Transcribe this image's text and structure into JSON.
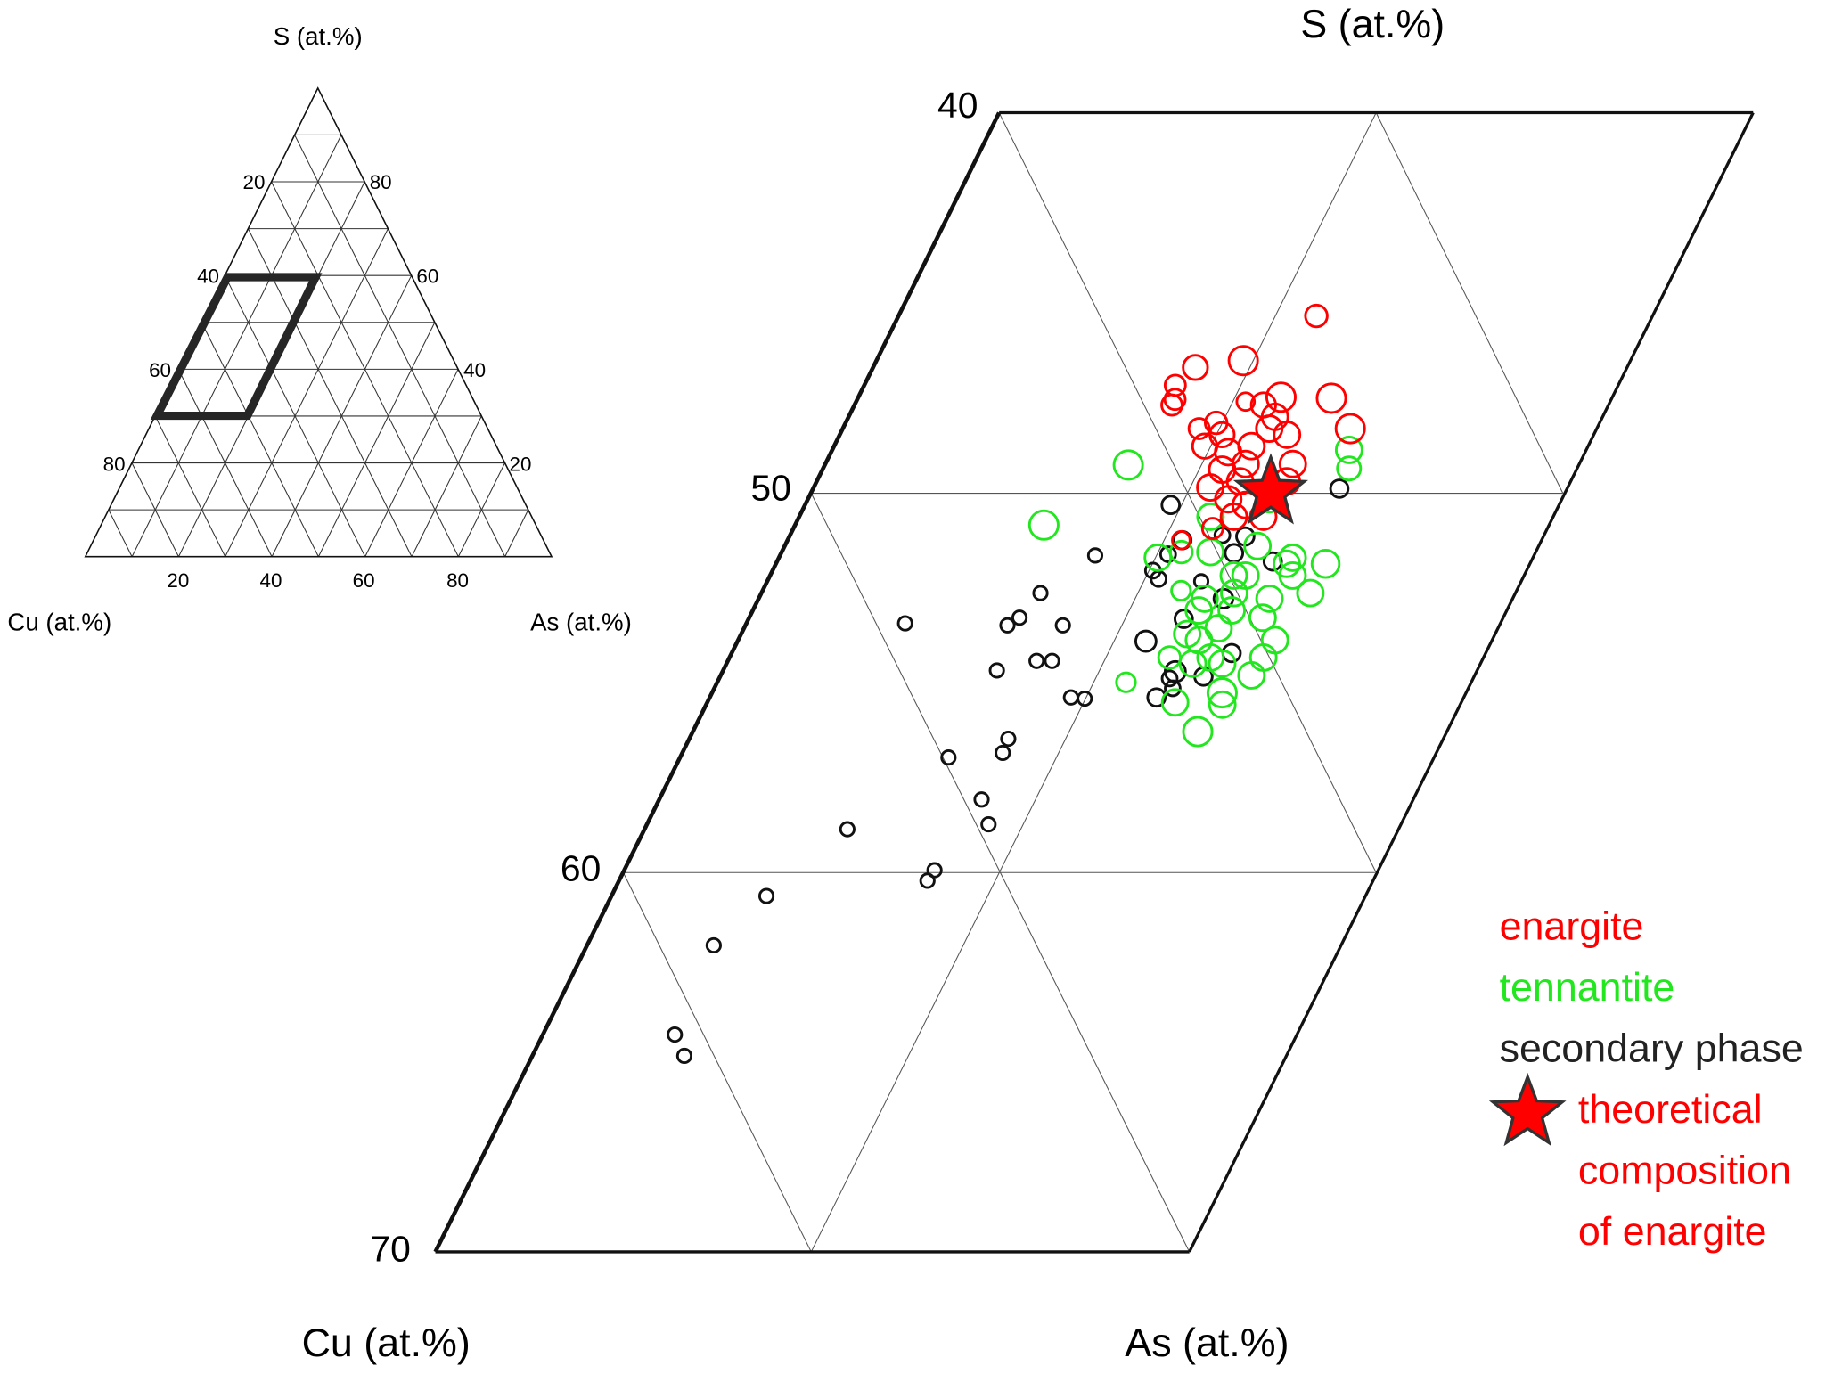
{
  "chart_data": {
    "type": "scatter",
    "subtype": "ternary-zoom",
    "inset": {
      "apex_labels": {
        "top": "S (at.%)",
        "left": "Cu (at.%)",
        "right": "As (at.%)"
      },
      "left_ticks": [
        "20",
        "40",
        "60",
        "80"
      ],
      "right_ticks": [
        "80",
        "60",
        "40",
        "20"
      ],
      "bottom_ticks": [
        "20",
        "40",
        "60",
        "80"
      ],
      "zoom_region_label_range": {
        "left_axis": [
          40,
          70
        ],
        "As": [
          0,
          20
        ]
      }
    },
    "main": {
      "apex_labels": {
        "top": "S (at.%)",
        "left": "Cu (at.%)",
        "right": "As (at.%)"
      },
      "left_axis_ticks": [
        "40",
        "50",
        "60",
        "70"
      ],
      "S_range": [
        40,
        70
      ],
      "As_range": [
        0,
        20
      ]
    },
    "series": [
      {
        "name": "enargite",
        "color": "#ff0000",
        "marker": "circle-open",
        "points": [
          [
            45.35,
            11.08,
            1.6
          ],
          [
            46.53,
            9.73,
            2.1
          ],
          [
            46.71,
            8.55,
            1.8
          ],
          [
            47.18,
            8.25,
            1.5
          ],
          [
            47.55,
            8.43,
            1.5
          ],
          [
            47.7,
            8.42,
            1.5
          ],
          [
            47.61,
            10.33,
            1.3
          ],
          [
            47.49,
            11.21,
            2.1
          ],
          [
            47.52,
            12.56,
            2.1
          ],
          [
            48.32,
            13.46,
            2.1
          ],
          [
            48.01,
            11.31,
            1.9
          ],
          [
            48.32,
            11.31,
            1.9
          ],
          [
            48.48,
            11.86,
            1.9
          ],
          [
            47.7,
            10.85,
            1.8
          ],
          [
            48.32,
            9.45,
            1.5
          ],
          [
            48.17,
            9.83,
            1.6
          ],
          [
            48.78,
            9.83,
            1.8
          ],
          [
            48.94,
            10.53,
            1.9
          ],
          [
            49.4,
            10.6,
            1.9
          ],
          [
            49.25,
            11.15,
            1.9
          ],
          [
            49.71,
            11.23,
            1.9
          ],
          [
            50.18,
            11.15,
            1.9
          ],
          [
            50.33,
            11.69,
            1.9
          ],
          [
            50.02,
            12.16,
            1.9
          ],
          [
            49.71,
            12.47,
            1.9
          ],
          [
            49.25,
            12.4,
            1.9
          ],
          [
            50.64,
            11.53,
            1.9
          ],
          [
            48.78,
            11.07,
            1.9
          ],
          [
            49.87,
            10.52,
            1.9
          ],
          [
            48.48,
            10.14,
            1.8
          ],
          [
            51.26,
            10.44,
            1.3
          ],
          [
            50.95,
            11.12,
            1.5
          ],
          [
            50.64,
            12.31,
            1.9
          ]
        ]
      },
      {
        "name": "tennantite",
        "color": "#22e61e",
        "marker": "circle-open",
        "points": [
          [
            49.28,
            8.05,
            2.1
          ],
          [
            50.86,
            6.6,
            2.1
          ],
          [
            48.88,
            13.71,
            1.9
          ],
          [
            49.37,
            13.95,
            1.7
          ],
          [
            51.72,
            10.05,
            1.9
          ],
          [
            52.59,
            11.1,
            1.4
          ],
          [
            55.0,
            10.84,
            1.4
          ],
          [
            56.3,
            13.39,
            2.1
          ],
          [
            55.53,
            12.41,
            1.9
          ],
          [
            55.28,
            13.53,
            2.1
          ],
          [
            54.35,
            12.76,
            1.9
          ],
          [
            53.89,
            12.22,
            1.9
          ],
          [
            53.58,
            12.59,
            1.9
          ],
          [
            53.89,
            14.24,
            1.9
          ],
          [
            54.35,
            14.16,
            1.9
          ],
          [
            54.82,
            14.08,
            1.9
          ],
          [
            54.51,
            13.15,
            1.9
          ],
          [
            54.51,
            12.37,
            1.9
          ],
          [
            54.35,
            11.67,
            1.6
          ],
          [
            53.73,
            11.83,
            1.9
          ],
          [
            53.11,
            12.7,
            1.9
          ],
          [
            52.8,
            13.55,
            1.9
          ],
          [
            52.19,
            13.86,
            1.9
          ],
          [
            52.65,
            14.56,
            1.9
          ],
          [
            51.88,
            14.58,
            2.0
          ],
          [
            51.72,
            13.63,
            1.9
          ],
          [
            51.41,
            12.54,
            1.9
          ],
          [
            52.19,
            12.3,
            1.9
          ],
          [
            51.57,
            11.37,
            1.9
          ],
          [
            50.64,
            10.91,
            1.9
          ],
          [
            50.18,
            12.24,
            1.9
          ],
          [
            55.59,
            13.69,
            1.9
          ],
          [
            52.65,
            12.54,
            1.9
          ],
          [
            51.57,
            10.6,
            1.6
          ],
          [
            52.19,
            12.61,
            1.9
          ],
          [
            52.8,
            11.83,
            1.9
          ],
          [
            53.11,
            11.83,
            1.9
          ],
          [
            53.3,
            13.62,
            1.9
          ],
          [
            51.88,
            13.55,
            1.9
          ]
        ]
      },
      {
        "name": "secondary phase",
        "color": "#111111",
        "marker": "circle-open",
        "points": [
          [
            53.45,
            4.21,
            1
          ],
          [
            53.5,
            6.95,
            1
          ],
          [
            53.3,
            7.17,
            1
          ],
          [
            52.65,
            7.4,
            1
          ],
          [
            53.5,
            8.42,
            1
          ],
          [
            51.66,
            8.36,
            1
          ],
          [
            54.69,
            7.26,
            1
          ],
          [
            54.44,
            8.19,
            1
          ],
          [
            54.44,
            8.6,
            1
          ],
          [
            55.4,
            9.58,
            1
          ],
          [
            55.43,
            9.96,
            1
          ],
          [
            56.98,
            7.12,
            1
          ],
          [
            56.49,
            8.46,
            1
          ],
          [
            56.86,
            8.5,
            1
          ],
          [
            58.09,
            8.55,
            1
          ],
          [
            58.74,
            9.06,
            1
          ],
          [
            58.87,
            5.38,
            1
          ],
          [
            59.95,
            8.23,
            1
          ],
          [
            60.23,
            8.18,
            1
          ],
          [
            60.63,
            4.11,
            1
          ],
          [
            61.93,
            3.36,
            1
          ],
          [
            64.28,
            3.5,
            1
          ],
          [
            64.84,
            4.03,
            1
          ],
          [
            50.33,
            9.7,
            1.3
          ],
          [
            49.9,
            13.96,
            1.3
          ],
          [
            51.26,
            10.47,
            1.3
          ],
          [
            51.63,
            10.28,
            1.1
          ],
          [
            52.06,
            10.09,
            1.1
          ],
          [
            52.28,
            10.35,
            1.1
          ],
          [
            51.13,
            11.47,
            1.1
          ],
          [
            51.16,
            12.09,
            1.3
          ],
          [
            51.6,
            12.01,
            1.3
          ],
          [
            51.82,
            13.15,
            1.3
          ],
          [
            52.34,
            11.51,
            1.0
          ],
          [
            52.8,
            12.33,
            1.4
          ],
          [
            53.33,
            11.54,
            1.3
          ],
          [
            53.92,
            10.83,
            1.5
          ],
          [
            54.23,
            13.26,
            1.3
          ],
          [
            54.72,
            12.01,
            1.5
          ],
          [
            54.9,
            11.95,
            1.1
          ],
          [
            54.85,
            12.82,
            1.3
          ],
          [
            55.16,
            12.16,
            1.1
          ],
          [
            55.4,
            11.85,
            1.3
          ]
        ]
      }
    ],
    "annotation": {
      "name": "theoretical composition of enargite",
      "S": 50,
      "As": 12.5,
      "color": "#ff0000",
      "marker": "star"
    },
    "legend": {
      "placement": "bottom-right",
      "enargite": "enargite",
      "tennantite": "tennantite",
      "secondary": "secondary phase",
      "star_line1": "theoretical",
      "star_line2": "composition",
      "star_line3": "of enargite"
    }
  }
}
